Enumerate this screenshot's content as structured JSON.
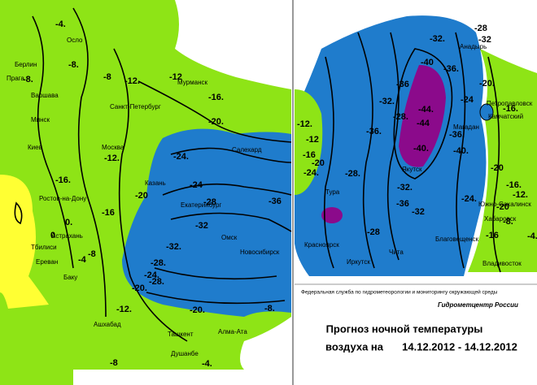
{
  "left_map": {
    "cities": [
      "Осло",
      "Берлин",
      "Прага",
      "Варшава",
      "Минск",
      "Киев",
      "Москва",
      "Санкт-Петербург",
      "Мурманск",
      "Салехард",
      "Казань",
      "Екатеринбург",
      "Ростов-на-Дону",
      "Астрахань",
      "Омск",
      "Новосибирск",
      "Тбилиси",
      "Ереван",
      "Баку",
      "Ашхабад",
      "Ташкент",
      "Алма-Ата",
      "Душанбе"
    ],
    "contour_labels": [
      "-4.",
      "-8.",
      "-8",
      "-8.",
      "-12.",
      "-12.",
      "-12",
      "-16.",
      "-16",
      "-20.",
      "-20",
      "-24.",
      "-24",
      "-28",
      "-28.",
      "-32.",
      "-32",
      "-36",
      "-4",
      "0",
      "0.",
      "-8",
      "-12.",
      "-16.",
      "-20.",
      "-24.",
      "-28.",
      "-20.",
      "-8.",
      "-4.",
      "-8"
    ]
  },
  "right_map": {
    "cities": [
      "Анадырь",
      "Петропавловск",
      "Камчатский",
      "Магадан",
      "Якутск",
      "Тура",
      "Красноярск",
      "Иркутск",
      "Чита",
      "Благовещенск",
      "Южно-Сахалинск",
      "Хабаровск",
      "Владивосток"
    ],
    "contour_labels": [
      "-28",
      "-32.",
      "-32",
      "-36",
      "-36.",
      "-40",
      "-44.",
      "-44",
      "-40.",
      "-36.",
      "-32.",
      "-28.",
      "-24",
      "-20.",
      "-16.",
      "-12.",
      "-12",
      "-16",
      "-20",
      "-24.",
      "-28.",
      "-32.",
      "-36.",
      "-40.",
      "-36",
      "-32",
      "-28",
      "-24.",
      "-20",
      "-16.",
      "-12.",
      "-8.",
      "-4.",
      "-16",
      "-20"
    ]
  },
  "footer": {
    "agency": "Федеральная служба по гидрометеорологии и мониторингу окружающей среды",
    "center": "Гидрометцентр России",
    "title_line1": "Прогноз ночной температуры",
    "title_line2": "воздуха на",
    "dates": "14.12.2012 - 14.12.2012"
  }
}
